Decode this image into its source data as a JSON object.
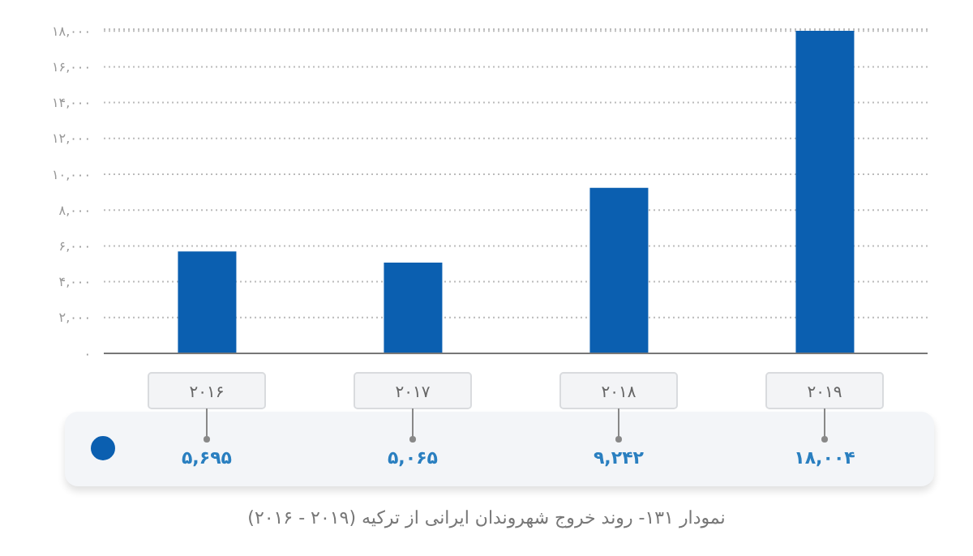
{
  "chart_data": {
    "type": "bar",
    "title": "نمودار ۱۳۱- روند خروج شهروندان ایرانی از ترکیه (۲۰۱۹ - ۲۰۱۶)",
    "categories": [
      "۲۰۱۶",
      "۲۰۱۷",
      "۲۰۱۸",
      "۲۰۱۹"
    ],
    "values": [
      5695,
      5065,
      9242,
      18004
    ],
    "value_labels": [
      "۵,۶۹۵",
      "۵,۰۶۵",
      "۹,۲۴۲",
      "۱۸,۰۰۴"
    ],
    "color": "#0b5fb0",
    "ylim": [
      0,
      18100
    ],
    "yticks": [
      {
        "value": 0,
        "label": "۰"
      },
      {
        "value": 2000,
        "label": "۲,۰۰۰"
      },
      {
        "value": 4000,
        "label": "۴,۰۰۰"
      },
      {
        "value": 6000,
        "label": "۶,۰۰۰"
      },
      {
        "value": 8000,
        "label": "۸,۰۰۰"
      },
      {
        "value": 10000,
        "label": "۱۰,۰۰۰"
      },
      {
        "value": 12000,
        "label": "۱۲,۰۰۰"
      },
      {
        "value": 14000,
        "label": "۱۴,۰۰۰"
      },
      {
        "value": 16000,
        "label": "۱۶,۰۰۰"
      },
      {
        "value": 18000,
        "label": "۱۸,۰۰۰"
      }
    ],
    "grid": "y",
    "legend": false
  }
}
